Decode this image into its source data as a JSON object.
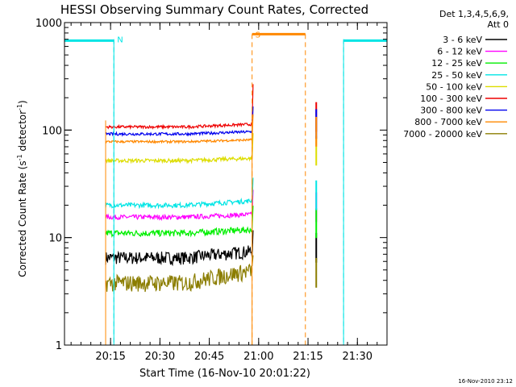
{
  "chart_data": {
    "type": "line",
    "title": "HESSI Observing Summary Count Rates, Corrected",
    "xlabel": "Start Time (16-Nov-10 20:01:22)",
    "ylabel_main": "Corrected Count Rate (s",
    "ylabel_sup1": "-1",
    "ylabel_mid": " detector",
    "ylabel_sup2": "-1",
    "ylabel_end": ")",
    "yscale": "log",
    "ylim": [
      1,
      1000
    ],
    "xlim_minutes": [
      0,
      98
    ],
    "y_ticks": [
      {
        "value": 1,
        "label": "1"
      },
      {
        "value": 10,
        "label": "10"
      },
      {
        "value": 100,
        "label": "100"
      },
      {
        "value": 1000,
        "label": "1000"
      }
    ],
    "x_ticks": [
      {
        "minute": 14,
        "label": "20:15"
      },
      {
        "minute": 29,
        "label": "20:30"
      },
      {
        "minute": 44,
        "label": "20:45"
      },
      {
        "minute": 59,
        "label": "21:00"
      },
      {
        "minute": 74,
        "label": "21:15"
      },
      {
        "minute": 89,
        "label": "21:30"
      }
    ],
    "legend_header": [
      "Det 1,3,4,5,6,9,",
      "Att 0"
    ],
    "legend_placement": "right",
    "series": [
      {
        "name": "3 - 6 keV",
        "color": "#000000",
        "level": 6.5,
        "noise": 0.14,
        "rise": 0.15
      },
      {
        "name": "6 - 12 keV",
        "color": "#ff00ff",
        "level": 15.5,
        "noise": 0.05,
        "rise": 0.06
      },
      {
        "name": "12 - 25 keV",
        "color": "#00ee00",
        "level": 11,
        "noise": 0.07,
        "rise": 0.08
      },
      {
        "name": "25 - 50 keV",
        "color": "#00e5e5",
        "level": 20,
        "noise": 0.05,
        "rise": 0.1
      },
      {
        "name": "50 - 100 keV",
        "color": "#dddd00",
        "level": 52,
        "noise": 0.04,
        "rise": 0.05
      },
      {
        "name": "100 - 300 keV",
        "color": "#ee0000",
        "level": 107,
        "noise": 0.03,
        "rise": 0.06
      },
      {
        "name": "300 - 800 keV",
        "color": "#0000ee",
        "level": 92,
        "noise": 0.03,
        "rise": 0.05
      },
      {
        "name": "800 - 7000 keV",
        "color": "#ff8800",
        "level": 78,
        "noise": 0.025,
        "rise": 0.04
      },
      {
        "name": "7000 - 20000 keV",
        "color": "#8b7d00",
        "level": 3.8,
        "noise": 0.18,
        "rise": 0.3
      }
    ],
    "data_interval_minutes": [
      12.5,
      57
    ],
    "flags": [
      {
        "label": "N",
        "color": "#00e5e5",
        "start": 15,
        "end": 84.8,
        "level": 700
      },
      {
        "label": "S",
        "color": "#ff8800",
        "start": 57,
        "end": 73.2,
        "level": 780
      }
    ],
    "night_bars": [
      {
        "color": "#00e5e5",
        "from": 0,
        "to": 15,
        "level": 680
      },
      {
        "color": "#00e5e5",
        "from": 84.8,
        "to": 98,
        "level": 680
      }
    ],
    "footer_date": "16-Nov-2010 23:12"
  }
}
